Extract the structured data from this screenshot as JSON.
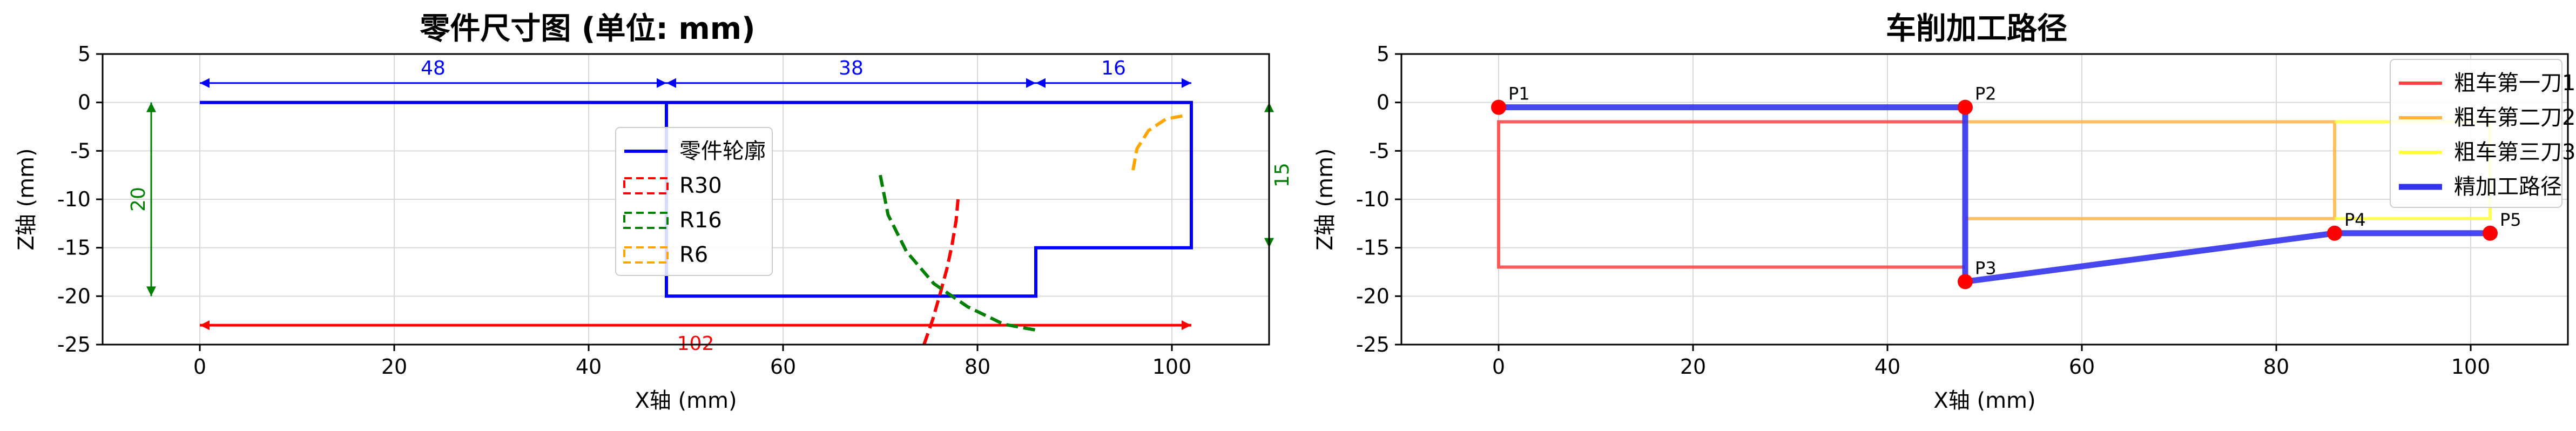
{
  "chart_data": [
    {
      "type": "line",
      "title": "零件尺寸图 (单位: mm)",
      "xlabel": "X轴 (mm)",
      "ylabel": "Z轴 (mm)",
      "xlim": [
        -10,
        110
      ],
      "ylim": [
        -25,
        5
      ],
      "xticks": [
        0,
        20,
        40,
        60,
        80,
        100
      ],
      "yticks": [
        5,
        0,
        -5,
        -10,
        -15,
        -20,
        -25
      ],
      "grid": true,
      "legend_position": "center",
      "series": [
        {
          "name": "零件轮廓",
          "color": "#0000ff",
          "style": "solid",
          "x": [
            0,
            48,
            48,
            86,
            86,
            102,
            102,
            48
          ],
          "y": [
            0,
            0,
            -20,
            -20,
            -15,
            -15,
            0,
            0
          ]
        },
        {
          "name": "R30",
          "color": "#ff0000",
          "style": "dashed",
          "x": [
            74.5,
            75.4,
            76.2,
            76.9,
            77.4,
            77.8,
            78.0
          ],
          "y": [
            -25.0,
            -22.4,
            -19.6,
            -17.0,
            -14.6,
            -12.2,
            -10.0
          ]
        },
        {
          "name": "R16",
          "color": "#008000",
          "style": "dashed",
          "x": [
            70.0,
            70.8,
            72.7,
            75.5,
            79.0,
            82.7,
            86.0
          ],
          "y": [
            -7.5,
            -11.6,
            -15.4,
            -18.7,
            -21.1,
            -22.9,
            -23.5
          ]
        },
        {
          "name": "R6",
          "color": "#ffa500",
          "style": "dashed",
          "x": [
            96.0,
            96.4,
            97.6,
            99.4,
            101.6
          ],
          "y": [
            -7.0,
            -4.8,
            -2.9,
            -1.7,
            -1.3
          ]
        }
      ],
      "annotations": [
        {
          "text": "48",
          "color": "#0000ff",
          "from": [
            0,
            2
          ],
          "to": [
            48,
            2
          ]
        },
        {
          "text": "38",
          "color": "#0000ff",
          "from": [
            48,
            2
          ],
          "to": [
            86,
            2
          ]
        },
        {
          "text": "16",
          "color": "#0000ff",
          "from": [
            86,
            2
          ],
          "to": [
            102,
            2
          ]
        },
        {
          "text": "102",
          "color": "#ff0000",
          "from": [
            0,
            -23
          ],
          "to": [
            102,
            -23
          ]
        },
        {
          "text": "20",
          "color": "#008000",
          "from": [
            -5,
            0
          ],
          "to": [
            -5,
            -20
          ]
        },
        {
          "text": "15",
          "color": "#008000",
          "from": [
            110,
            0
          ],
          "to": [
            110,
            -15
          ]
        }
      ]
    },
    {
      "type": "line",
      "title": "车削加工路径",
      "xlabel": "X轴 (mm)",
      "ylabel": "Z轴 (mm)",
      "xlim": [
        -10,
        110
      ],
      "ylim": [
        -25,
        5
      ],
      "xticks": [
        0,
        20,
        40,
        60,
        80,
        100
      ],
      "yticks": [
        5,
        0,
        -5,
        -10,
        -15,
        -20,
        -25
      ],
      "grid": true,
      "legend_position": "top-right",
      "series": [
        {
          "name": "粗车第一刀1",
          "color": "#ff4040",
          "width": "normal",
          "x": [
            48,
            0,
            0,
            48
          ],
          "y": [
            -2,
            -2,
            -17,
            -17
          ]
        },
        {
          "name": "粗车第二刀2",
          "color": "#ffb347",
          "width": "normal",
          "x": [
            48,
            86,
            86,
            48
          ],
          "y": [
            -2,
            -2,
            -12,
            -12
          ]
        },
        {
          "name": "粗车第三刀3",
          "color": "#ffff33",
          "width": "normal",
          "x": [
            86,
            102,
            102,
            86
          ],
          "y": [
            -2,
            -2,
            -12,
            -12
          ]
        },
        {
          "name": "精加工路径",
          "color": "#3333ee",
          "width": "thick",
          "x": [
            0,
            48,
            48,
            86,
            102
          ],
          "y": [
            -0.5,
            -0.5,
            -18.5,
            -13.5,
            -13.5
          ]
        }
      ],
      "points": [
        {
          "label": "P1",
          "x": 0,
          "y": -0.5
        },
        {
          "label": "P2",
          "x": 48,
          "y": -0.5
        },
        {
          "label": "P3",
          "x": 48,
          "y": -18.5
        },
        {
          "label": "P4",
          "x": 86,
          "y": -13.5
        },
        {
          "label": "P5",
          "x": 102,
          "y": -13.5
        }
      ]
    }
  ]
}
